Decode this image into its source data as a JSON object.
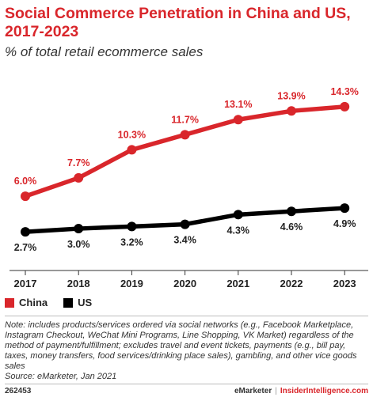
{
  "title": "Social Commerce Penetration in China and US, 2017-2023",
  "subtitle": "% of total retail ecommerce sales",
  "legend": {
    "china": "China",
    "us": "US"
  },
  "colors": {
    "china": "#d9262b",
    "us": "#000000",
    "accent": "#d9262b"
  },
  "note": "Note: includes products/services ordered via social networks (e.g., Facebook Marketplace, Instagram Checkout, WeChat Mini Programs, Line Shopping, VK Market) regardless of the method of payment/fulfillment; excludes travel and event tickets, payments (e.g., bill pay, taxes, money transfers, food services/drinking place sales), gambling, and other vice goods sales",
  "source": "Source: eMarketer, Jan 2021",
  "footer": {
    "chart_id": "262453",
    "brand": "eMarketer",
    "separator": "|",
    "site": "InsiderIntelligence.com"
  },
  "chart_data": {
    "type": "line",
    "title": "Social Commerce Penetration in China and US, 2017-2023",
    "subtitle": "% of total retail ecommerce sales",
    "categories": [
      "2017",
      "2018",
      "2019",
      "2020",
      "2021",
      "2022",
      "2023"
    ],
    "series": [
      {
        "name": "China",
        "color": "#d9262b",
        "values": [
          6.0,
          7.7,
          10.3,
          11.7,
          13.1,
          13.9,
          14.3
        ],
        "labels": [
          "6.0%",
          "7.7%",
          "10.3%",
          "11.7%",
          "13.1%",
          "13.9%",
          "14.3%"
        ]
      },
      {
        "name": "US",
        "color": "#000000",
        "values": [
          2.7,
          3.0,
          3.2,
          3.4,
          4.3,
          4.6,
          4.9
        ],
        "labels": [
          "2.7%",
          "3.0%",
          "3.2%",
          "3.4%",
          "4.3%",
          "4.6%",
          "4.9%"
        ]
      }
    ],
    "ylim": [
      0,
      17
    ],
    "grid": false,
    "legend_position": "bottom-left"
  }
}
